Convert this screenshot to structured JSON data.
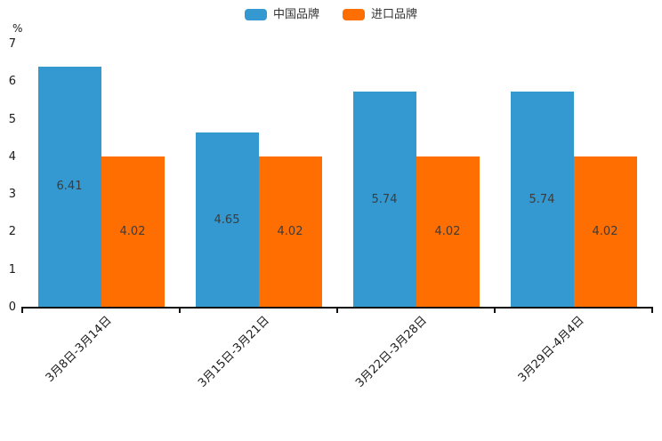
{
  "chart_data": {
    "type": "bar",
    "title": "",
    "xlabel": "",
    "ylabel": "%",
    "ylim": [
      0,
      7
    ],
    "yticks": [
      0,
      1,
      2,
      3,
      4,
      5,
      6,
      7
    ],
    "grid": false,
    "legend_position": "top-center",
    "categories": [
      "3月8日-3月14日",
      "3月15日-3月21日",
      "3月22日-3月28日",
      "3月29日-4月4日"
    ],
    "series": [
      {
        "name": "中国品牌",
        "color": "#3399D0",
        "values": [
          6.41,
          4.65,
          5.74,
          5.74
        ]
      },
      {
        "name": "进口品牌",
        "color": "#FE6E00",
        "values": [
          4.02,
          4.02,
          4.02,
          4.02
        ]
      }
    ],
    "bar_label_color": "#3c3c3c",
    "axis_color": "#111111"
  }
}
